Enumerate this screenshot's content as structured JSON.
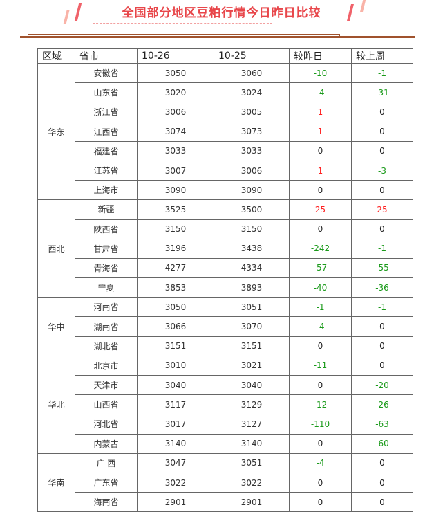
{
  "title": "全国部分地区豆粕行情今日昨日比较",
  "colors": {
    "accent": "#e8464a",
    "rule": "#a0522d",
    "up": "#ff2020",
    "down": "#1a9a1a"
  },
  "headers": [
    "区域",
    "省市",
    "10-26",
    "10-25",
    "较昨日",
    "较上周"
  ],
  "regions": [
    {
      "name": "华东",
      "rows": [
        [
          "安徽省",
          "3050",
          "3060",
          "-10",
          "-1"
        ],
        [
          "山东省",
          "3020",
          "3024",
          "-4",
          "-31"
        ],
        [
          "浙江省",
          "3006",
          "3005",
          "1",
          "0"
        ],
        [
          "江西省",
          "3074",
          "3073",
          "1",
          "0"
        ],
        [
          "福建省",
          "3033",
          "3033",
          "0",
          "0"
        ],
        [
          "江苏省",
          "3007",
          "3006",
          "1",
          "-3"
        ],
        [
          "上海市",
          "3090",
          "3090",
          "0",
          "0"
        ]
      ]
    },
    {
      "name": "西北",
      "rows": [
        [
          "新疆",
          "3525",
          "3500",
          "25",
          "25"
        ],
        [
          "陕西省",
          "3150",
          "3150",
          "0",
          "0"
        ],
        [
          "甘肃省",
          "3196",
          "3438",
          "-242",
          "-1"
        ],
        [
          "青海省",
          "4277",
          "4334",
          "-57",
          "-55"
        ],
        [
          "宁夏",
          "3853",
          "3893",
          "-40",
          "-36"
        ]
      ]
    },
    {
      "name": "华中",
      "rows": [
        [
          "河南省",
          "3050",
          "3051",
          "-1",
          "-1"
        ],
        [
          "湖南省",
          "3066",
          "3070",
          "-4",
          "0"
        ],
        [
          "湖北省",
          "3151",
          "3151",
          "0",
          "0"
        ]
      ]
    },
    {
      "name": "华北",
      "rows": [
        [
          "北京市",
          "3010",
          "3021",
          "-11",
          "0"
        ],
        [
          "天津市",
          "3040",
          "3040",
          "0",
          "-20"
        ],
        [
          "山西省",
          "3117",
          "3129",
          "-12",
          "-26"
        ],
        [
          "河北省",
          "3017",
          "3127",
          "-110",
          "-63"
        ],
        [
          "内蒙古",
          "3140",
          "3140",
          "0",
          "-60"
        ]
      ]
    },
    {
      "name": "华南",
      "rows": [
        [
          "广 西",
          "3047",
          "3051",
          "-4",
          "0"
        ],
        [
          "广东省",
          "3022",
          "3022",
          "0",
          "0"
        ],
        [
          "海南省",
          "2901",
          "2901",
          "0",
          "0"
        ]
      ]
    }
  ]
}
